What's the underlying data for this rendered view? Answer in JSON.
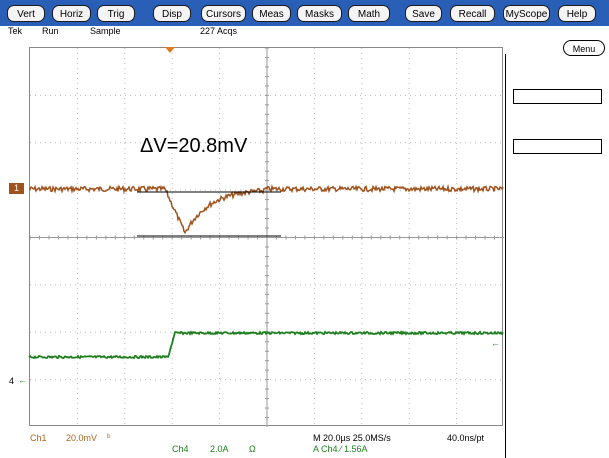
{
  "menubar": {
    "buttons": [
      "Vert",
      "Horiz",
      "Trig",
      "Disp",
      "Cursors",
      "Meas",
      "Masks",
      "Math",
      "Save",
      "Recall",
      "MyScope",
      "Help"
    ]
  },
  "status": {
    "brand": "Tek",
    "run_state": "Run",
    "mode": "Sample",
    "acqs": "227 Acqs"
  },
  "side": {
    "menu_label": "Menu"
  },
  "annotation": {
    "delta_v": "ΔV=20.8mV"
  },
  "markers": {
    "ch1": "1",
    "ch4": "4",
    "ch4_arrow": "←"
  },
  "colors": {
    "menubar": "#2a5fb8",
    "ch1": "#a0521d",
    "ch4": "#1e7f1e",
    "trigger": "#e07a20"
  },
  "footer": {
    "ch1_label": "Ch1",
    "ch1_scale": "20.0mV",
    "ch1_bw": "ᵇ",
    "ch4_label": "Ch4",
    "ch4_scale": "2.0A",
    "ch4_unit": "Ω",
    "timebase": "M 20.0µs 25.0MS/s",
    "record": "40.0ns/pt",
    "trigger": "A  Ch4  ⁄  1.56A"
  },
  "chart_data": {
    "type": "line",
    "series": [
      {
        "name": "Ch1",
        "values": []
      },
      {
        "name": "Ch4",
        "values": []
      }
    ]
  }
}
